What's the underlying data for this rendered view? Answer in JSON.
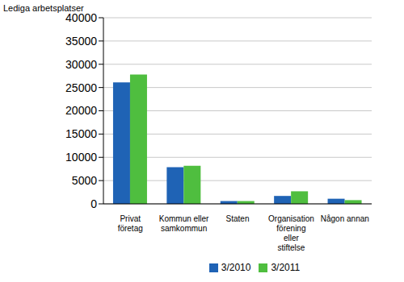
{
  "chart_data": {
    "type": "bar",
    "y_label": "Lediga arbetsplatser",
    "categories": [
      "Privat företag",
      "Kommun eller samkommun",
      "Staten",
      "Organisation förening eller stiftelse",
      "Någon annan"
    ],
    "series": [
      {
        "name": "3/2010",
        "color": "#1f63b5",
        "values": [
          26100,
          7900,
          600,
          1700,
          1100
        ]
      },
      {
        "name": "3/2011",
        "color": "#4fbe3f",
        "values": [
          27800,
          8200,
          600,
          2700,
          800
        ]
      }
    ],
    "ylim": [
      0,
      40000
    ],
    "yticks": [
      0,
      5000,
      10000,
      15000,
      20000,
      25000,
      30000,
      35000,
      40000
    ],
    "grid": true,
    "legend": "bottom"
  }
}
